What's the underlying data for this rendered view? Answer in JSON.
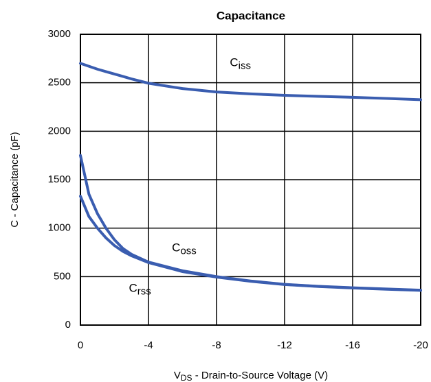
{
  "chart_data": {
    "type": "line",
    "title": "Capacitance",
    "x_label": {
      "main": "V",
      "sub": "DS",
      "rest": " - Drain-to-Source Voltage (V)"
    },
    "y_label": "C - Capacitance (pF)",
    "x": [
      0,
      -0.5,
      -1,
      -1.5,
      -2,
      -2.5,
      -3,
      -4,
      -6,
      -8,
      -10,
      -12,
      -14,
      -16,
      -18,
      -20
    ],
    "series": [
      {
        "name": {
          "main": "C",
          "sub": "iss"
        },
        "color": "#3a5db0",
        "values": [
          2700,
          2670,
          2640,
          2615,
          2590,
          2565,
          2540,
          2495,
          2440,
          2405,
          2385,
          2370,
          2360,
          2350,
          2338,
          2325
        ]
      },
      {
        "name": {
          "main": "C",
          "sub": "oss"
        },
        "color": "#3a5db0",
        "values": [
          1750,
          1350,
          1150,
          1000,
          880,
          790,
          730,
          650,
          560,
          500,
          455,
          420,
          400,
          385,
          372,
          360
        ]
      },
      {
        "name": {
          "main": "C",
          "sub": "rss"
        },
        "color": "#3a5db0",
        "values": [
          1330,
          1120,
          1000,
          900,
          820,
          760,
          715,
          645,
          552,
          495,
          452,
          418,
          398,
          383,
          370,
          358
        ]
      }
    ],
    "xlim": [
      0,
      -20
    ],
    "xticks": [
      0,
      -4,
      -8,
      -12,
      -16,
      -20
    ],
    "ylim": [
      0,
      3000
    ],
    "yticks": [
      0,
      500,
      1000,
      1500,
      2000,
      2500,
      3000
    ],
    "grid": true
  }
}
